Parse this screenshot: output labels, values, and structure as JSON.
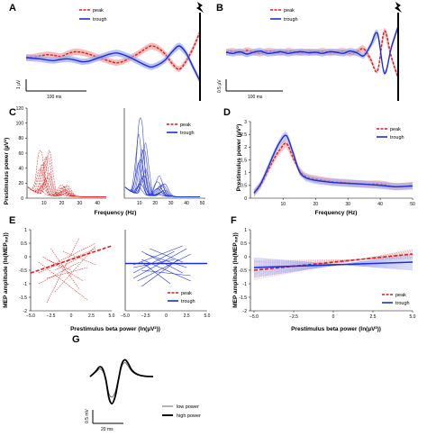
{
  "colors": {
    "peak": "#e01b1b",
    "trough": "#1a2fd6",
    "peak_light": "#f2a0a0",
    "trough_light": "#9aa6ee",
    "black": "#000000",
    "grey": "#666666"
  },
  "icons": {
    "stimulus": "lightning-bolt-icon"
  },
  "chart_data": [
    {
      "panel": "A",
      "type": "line",
      "series": [
        {
          "name": "peak",
          "x": [
            0,
            4,
            8,
            12,
            16,
            20,
            24,
            28,
            32,
            36,
            40,
            44,
            48,
            52,
            56,
            60,
            64,
            68,
            72,
            76,
            80,
            84,
            88,
            92,
            96,
            100
          ],
          "values": [
            0.0,
            0.05,
            0.15,
            0.25,
            0.2,
            0.1,
            0.35,
            0.5,
            0.45,
            0.3,
            0.1,
            -0.1,
            -0.3,
            -0.45,
            -0.3,
            0.0,
            0.3,
            0.7,
            1.0,
            0.8,
            0.3,
            -0.5,
            -1.0,
            -0.3,
            0.8,
            2.2
          ]
        },
        {
          "name": "trough",
          "x": [
            0,
            4,
            8,
            12,
            16,
            20,
            24,
            28,
            32,
            36,
            40,
            44,
            48,
            52,
            56,
            60,
            64,
            68,
            72,
            76,
            80,
            84,
            88,
            92,
            96,
            100
          ],
          "values": [
            0.0,
            -0.05,
            -0.1,
            -0.2,
            -0.25,
            -0.15,
            -0.1,
            -0.2,
            -0.35,
            -0.3,
            -0.1,
            0.1,
            0.3,
            0.4,
            0.25,
            0.0,
            -0.3,
            -0.6,
            -0.8,
            -0.6,
            -0.2,
            0.5,
            1.0,
            0.4,
            -0.8,
            -2.0
          ]
        }
      ],
      "legend": [
        "peak",
        "trough"
      ],
      "scale_bar": {
        "y": "1 µV",
        "x": "100 ms"
      }
    },
    {
      "panel": "B",
      "type": "line",
      "series": [
        {
          "name": "peak",
          "x": [
            0,
            4,
            8,
            12,
            16,
            20,
            24,
            28,
            32,
            36,
            40,
            44,
            48,
            52,
            56,
            60,
            64,
            68,
            72,
            76,
            80,
            84,
            88,
            92,
            96,
            100
          ],
          "values": [
            0.0,
            0.1,
            -0.05,
            0.15,
            0.0,
            -0.1,
            0.1,
            0.05,
            -0.05,
            0.1,
            0.0,
            -0.05,
            0.05,
            0.0,
            0.1,
            -0.05,
            0.0,
            0.1,
            -0.1,
            0.05,
            0.3,
            -0.6,
            -1.6,
            1.8,
            -0.4,
            -2.2
          ]
        },
        {
          "name": "trough",
          "x": [
            0,
            4,
            8,
            12,
            16,
            20,
            24,
            28,
            32,
            36,
            40,
            44,
            48,
            52,
            56,
            60,
            64,
            68,
            72,
            76,
            80,
            84,
            88,
            92,
            96,
            100
          ],
          "values": [
            0.0,
            -0.1,
            0.05,
            -0.15,
            0.0,
            0.1,
            -0.1,
            -0.05,
            0.05,
            -0.1,
            0.0,
            0.05,
            -0.05,
            0.0,
            -0.1,
            0.05,
            0.0,
            -0.1,
            0.1,
            -0.05,
            -0.3,
            0.6,
            1.6,
            -1.8,
            0.4,
            2.2
          ]
        }
      ],
      "legend": [
        "peak",
        "trough"
      ],
      "scale_bar": {
        "y": "0.5 µV",
        "x": "100 ms"
      }
    },
    {
      "panel": "C",
      "type": "line",
      "ylabel": "Prestimulus power (µV²)",
      "xlabel": "Frequency (Hz)",
      "yticks": [
        "0",
        "20",
        "40",
        "60",
        "80",
        "100",
        "120"
      ],
      "xticks_left": [
        "10",
        "20",
        "30",
        "40"
      ],
      "xticks_right": [
        "10",
        "20",
        "30",
        "40",
        "50"
      ],
      "legend": [
        "peak",
        "trough"
      ],
      "left_subject_alpha_peaks": [
        5,
        10,
        15,
        20,
        25,
        30,
        35,
        40,
        45,
        50,
        55,
        60,
        62
      ],
      "right_subject_alpha_peaks": [
        10,
        15,
        22,
        28,
        35,
        42,
        50,
        60,
        65,
        70,
        80,
        110
      ]
    },
    {
      "panel": "D",
      "type": "line",
      "ylabel": "Prestimulus power (µV²)",
      "xlabel": "Frequency (Hz)",
      "yticks": [
        "0",
        "0.5",
        "1",
        "1.5",
        "2",
        "2.5",
        "3"
      ],
      "xticks": [
        "10",
        "20",
        "30",
        "40",
        "50"
      ],
      "xlim": [
        1,
        50
      ],
      "ylim": [
        0,
        3
      ],
      "series": [
        {
          "name": "peak",
          "x": [
            1,
            3,
            5,
            7,
            9,
            11,
            13,
            15,
            17,
            20,
            25,
            30,
            35,
            40,
            45,
            50
          ],
          "values": [
            0.2,
            0.5,
            1.0,
            1.5,
            1.9,
            2.15,
            1.6,
            1.1,
            0.85,
            0.75,
            0.65,
            0.6,
            0.55,
            0.55,
            0.45,
            0.5
          ]
        },
        {
          "name": "trough",
          "x": [
            1,
            3,
            5,
            7,
            9,
            11,
            13,
            15,
            17,
            20,
            25,
            30,
            35,
            40,
            45,
            50
          ],
          "values": [
            0.2,
            0.55,
            1.1,
            1.7,
            2.2,
            2.45,
            1.8,
            1.05,
            0.8,
            0.7,
            0.62,
            0.58,
            0.55,
            0.5,
            0.45,
            0.48
          ]
        }
      ],
      "legend": [
        "peak",
        "trough"
      ]
    },
    {
      "panel": "E",
      "type": "scatter",
      "ylabel": "MEP amplitude (ln(MEPₒᵤᵣ))",
      "xlabel": "Prestimulus beta power (ln(µV²))",
      "yticks": [
        "-2",
        "-1.5",
        "-1",
        "-0.5",
        "0",
        "0.5",
        "1"
      ],
      "xticks": [
        "−5.0",
        "−2.5",
        "0",
        "2.5",
        "5.0"
      ],
      "series": [
        {
          "name": "peak",
          "x": [
            -5,
            5
          ],
          "values": [
            -0.6,
            0.4
          ]
        },
        {
          "name": "trough",
          "x": [
            -5,
            5
          ],
          "values": [
            -0.25,
            -0.25
          ]
        }
      ],
      "legend": [
        "peak",
        "trough"
      ]
    },
    {
      "panel": "F",
      "type": "line",
      "ylabel": "MEP amplitude (ln(MEPₒᵤᵣ))",
      "xlabel": "Prestimulus beta power (ln(µV²))",
      "yticks": [
        "-2",
        "-1.5",
        "-1",
        "-0.5",
        "0",
        "0.5",
        "1"
      ],
      "xticks": [
        "−5.0",
        "−2.5",
        "0",
        "2.5",
        "5.0"
      ],
      "series": [
        {
          "name": "peak",
          "x": [
            -5,
            5
          ],
          "values": [
            -0.5,
            0.1
          ]
        },
        {
          "name": "trough",
          "x": [
            -5,
            5
          ],
          "values": [
            -0.4,
            -0.2
          ]
        }
      ],
      "legend": [
        "peak",
        "trough"
      ]
    },
    {
      "panel": "G",
      "type": "line",
      "series": [
        {
          "name": "low power",
          "x": [
            0,
            2,
            4,
            6,
            8,
            10,
            12,
            14,
            16,
            18,
            20,
            22,
            24,
            26,
            28,
            30,
            32,
            34,
            36,
            38,
            40
          ],
          "values": [
            0,
            0.2,
            0.45,
            0.7,
            0.5,
            -0.2,
            -1.6,
            -1.9,
            -1.4,
            -0.2,
            0.9,
            1.3,
            1.0,
            0.55,
            0.3,
            0.15,
            0.08,
            0.04,
            0.02,
            0.01,
            0
          ]
        },
        {
          "name": "high power",
          "x": [
            0,
            2,
            4,
            6,
            8,
            10,
            12,
            14,
            16,
            18,
            20,
            22,
            24,
            26,
            28,
            30,
            32,
            34,
            36,
            38,
            40
          ],
          "values": [
            0,
            0.25,
            0.55,
            0.9,
            0.7,
            -0.3,
            -2.0,
            -2.5,
            -1.8,
            -0.3,
            1.1,
            1.55,
            1.25,
            0.7,
            0.38,
            0.2,
            0.1,
            0.05,
            0.02,
            0.01,
            0
          ]
        }
      ],
      "legend": [
        "low power",
        "high power"
      ],
      "scale_bar": {
        "y": "0.5 mV",
        "x": "20 ms"
      }
    }
  ],
  "labels": {
    "panels": [
      "A",
      "B",
      "C",
      "D",
      "E",
      "F",
      "G"
    ],
    "peak": "peak",
    "trough": "trough",
    "one_uv": "1 µV",
    "half_uv": "0.5 µV",
    "hundred_ms": "100 ms",
    "twenty_ms": "20 ms",
    "half_mv": "0.5 mV",
    "low_power": "low power",
    "high_power": "high power",
    "power_ylabel": "Prestimulus power (µV²)",
    "freq_xlabel": "Frequency (Hz)",
    "mep_ylabel": "MEP amplitude (ln(MEPₒᵤᵣ))",
    "beta_xlabel": "Prestimulus beta power (ln(µV²))"
  }
}
